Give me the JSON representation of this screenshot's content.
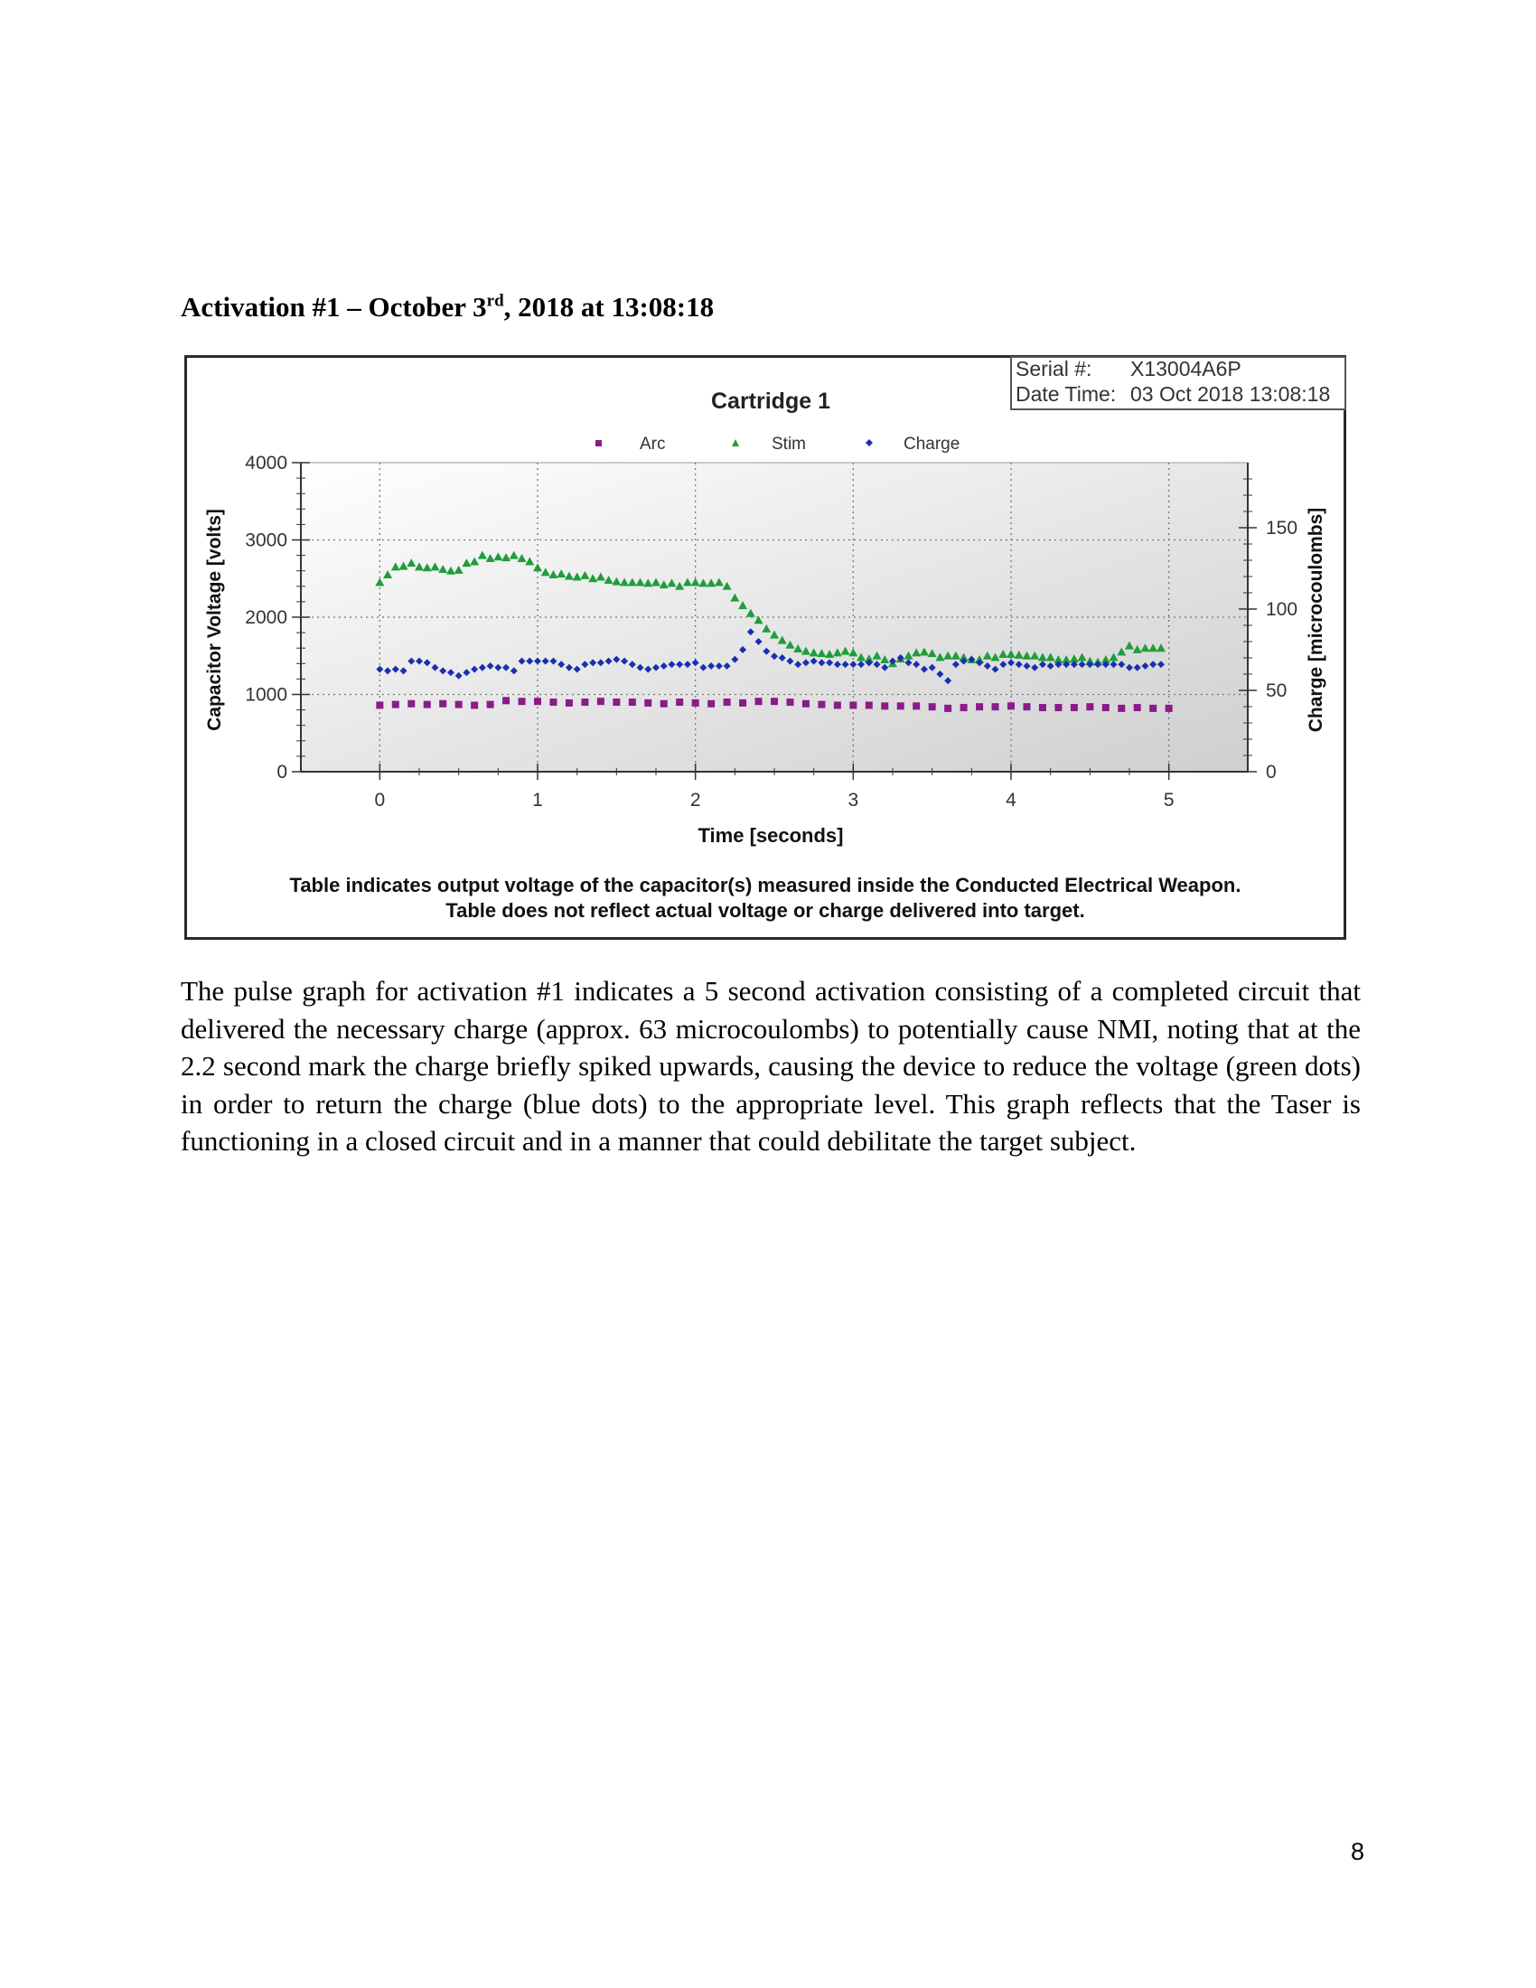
{
  "heading": {
    "prefix": "Activation #1 – October 3",
    "superscript": "rd",
    "suffix": ", 2018 at 13:08:18"
  },
  "figure": {
    "serial_label": "Serial #:",
    "serial_value": "X13004A6P",
    "datetime_label": "Date Time:",
    "datetime_value": "03 Oct 2018 13:08:18",
    "caption_line1": "Table indicates output voltage of the capacitor(s) measured inside the Conducted Electrical Weapon.",
    "caption_line2": "Table does not reflect actual voltage or charge delivered into target."
  },
  "chart_data": {
    "type": "scatter",
    "title": "Cartridge 1",
    "xlabel": "Time [seconds]",
    "ylabel": "Capacitor Voltage [volts]",
    "y2label": "Charge [microcoulombs]",
    "xlim": [
      -0.5,
      5.5
    ],
    "ylim": [
      0,
      4000
    ],
    "y2lim": [
      0,
      190
    ],
    "xticks": [
      0,
      1,
      2,
      3,
      4,
      5
    ],
    "yticks": [
      0,
      1000,
      2000,
      3000,
      4000
    ],
    "y2ticks": [
      0,
      50,
      100,
      150
    ],
    "grid": true,
    "legend_position": "top-center",
    "series": [
      {
        "name": "Arc",
        "marker": "square",
        "color": "#8b1a8b",
        "axis": "left",
        "x": [
          0,
          0.1,
          0.2,
          0.3,
          0.4,
          0.5,
          0.6,
          0.7,
          0.8,
          0.9,
          1.0,
          1.1,
          1.2,
          1.3,
          1.4,
          1.5,
          1.6,
          1.7,
          1.8,
          1.9,
          2.0,
          2.1,
          2.2,
          2.3,
          2.4,
          2.5,
          2.6,
          2.7,
          2.8,
          2.9,
          3.0,
          3.1,
          3.2,
          3.3,
          3.4,
          3.5,
          3.6,
          3.7,
          3.8,
          3.9,
          4.0,
          4.1,
          4.2,
          4.3,
          4.4,
          4.5,
          4.6,
          4.7,
          4.8,
          4.9,
          5.0
        ],
        "values": [
          860,
          870,
          880,
          870,
          880,
          870,
          860,
          870,
          920,
          910,
          910,
          900,
          890,
          900,
          910,
          900,
          900,
          890,
          880,
          900,
          890,
          880,
          900,
          890,
          910,
          910,
          900,
          880,
          870,
          860,
          860,
          860,
          850,
          850,
          850,
          840,
          820,
          830,
          840,
          840,
          850,
          840,
          830,
          830,
          830,
          840,
          830,
          820,
          830,
          820,
          820
        ]
      },
      {
        "name": "Stim",
        "marker": "triangle",
        "color": "#1e9e3a",
        "axis": "left",
        "x": [
          0,
          0.05,
          0.1,
          0.15,
          0.2,
          0.25,
          0.3,
          0.35,
          0.4,
          0.45,
          0.5,
          0.55,
          0.6,
          0.65,
          0.7,
          0.75,
          0.8,
          0.85,
          0.9,
          0.95,
          1.0,
          1.05,
          1.1,
          1.15,
          1.2,
          1.25,
          1.3,
          1.35,
          1.4,
          1.45,
          1.5,
          1.55,
          1.6,
          1.65,
          1.7,
          1.75,
          1.8,
          1.85,
          1.9,
          1.95,
          2.0,
          2.05,
          2.1,
          2.15,
          2.2,
          2.25,
          2.3,
          2.35,
          2.4,
          2.45,
          2.5,
          2.55,
          2.6,
          2.65,
          2.7,
          2.75,
          2.8,
          2.85,
          2.9,
          2.95,
          3.0,
          3.05,
          3.1,
          3.15,
          3.2,
          3.25,
          3.3,
          3.35,
          3.4,
          3.45,
          3.5,
          3.55,
          3.6,
          3.65,
          3.7,
          3.75,
          3.8,
          3.85,
          3.9,
          3.95,
          4.0,
          4.05,
          4.1,
          4.15,
          4.2,
          4.25,
          4.3,
          4.35,
          4.4,
          4.45,
          4.5,
          4.55,
          4.6,
          4.65,
          4.7,
          4.75,
          4.8,
          4.85,
          4.9,
          4.95
        ],
        "values": [
          2450,
          2550,
          2650,
          2660,
          2700,
          2650,
          2640,
          2650,
          2620,
          2600,
          2610,
          2700,
          2720,
          2800,
          2760,
          2780,
          2770,
          2800,
          2760,
          2720,
          2640,
          2580,
          2550,
          2560,
          2530,
          2520,
          2540,
          2500,
          2520,
          2480,
          2460,
          2450,
          2450,
          2450,
          2440,
          2450,
          2420,
          2440,
          2400,
          2450,
          2450,
          2440,
          2440,
          2450,
          2400,
          2250,
          2150,
          2050,
          1960,
          1850,
          1770,
          1700,
          1640,
          1590,
          1560,
          1540,
          1530,
          1520,
          1540,
          1560,
          1540,
          1480,
          1460,
          1500,
          1450,
          1400,
          1460,
          1500,
          1540,
          1550,
          1530,
          1480,
          1500,
          1500,
          1480,
          1450,
          1450,
          1500,
          1480,
          1520,
          1520,
          1510,
          1500,
          1500,
          1480,
          1480,
          1450,
          1450,
          1460,
          1480,
          1430,
          1420,
          1450,
          1480,
          1550,
          1630,
          1580,
          1600,
          1600,
          1600
        ]
      },
      {
        "name": "Charge",
        "marker": "diamond",
        "color": "#1a2fb0",
        "axis": "right",
        "x": [
          0,
          0.05,
          0.1,
          0.15,
          0.2,
          0.25,
          0.3,
          0.35,
          0.4,
          0.45,
          0.5,
          0.55,
          0.6,
          0.65,
          0.7,
          0.75,
          0.8,
          0.85,
          0.9,
          0.95,
          1.0,
          1.05,
          1.1,
          1.15,
          1.2,
          1.25,
          1.3,
          1.35,
          1.4,
          1.45,
          1.5,
          1.55,
          1.6,
          1.65,
          1.7,
          1.75,
          1.8,
          1.85,
          1.9,
          1.95,
          2.0,
          2.05,
          2.1,
          2.15,
          2.2,
          2.25,
          2.3,
          2.35,
          2.4,
          2.45,
          2.5,
          2.55,
          2.6,
          2.65,
          2.7,
          2.75,
          2.8,
          2.85,
          2.9,
          2.95,
          3.0,
          3.05,
          3.1,
          3.15,
          3.2,
          3.25,
          3.3,
          3.35,
          3.4,
          3.45,
          3.5,
          3.55,
          3.6,
          3.65,
          3.7,
          3.75,
          3.8,
          3.85,
          3.9,
          3.95,
          4.0,
          4.05,
          4.1,
          4.15,
          4.2,
          4.25,
          4.3,
          4.35,
          4.4,
          4.45,
          4.5,
          4.55,
          4.6,
          4.65,
          4.7,
          4.75,
          4.8,
          4.85,
          4.9,
          4.95
        ],
        "values": [
          63,
          62,
          63,
          62,
          68,
          68,
          67,
          64,
          62,
          61,
          59,
          61,
          63,
          64,
          65,
          64,
          64,
          62,
          68,
          68,
          68,
          68,
          68,
          66,
          64,
          63,
          66,
          67,
          67,
          68,
          69,
          68,
          66,
          64,
          63,
          64,
          65,
          66,
          66,
          66,
          67,
          64,
          65,
          65,
          65,
          69,
          75,
          86,
          80,
          74,
          71,
          70,
          68,
          66,
          67,
          68,
          67,
          67,
          66,
          66,
          66,
          66,
          67,
          66,
          64,
          68,
          70,
          67,
          66,
          63,
          64,
          60,
          56,
          66,
          68,
          69,
          67,
          65,
          63,
          66,
          67,
          66,
          65,
          64,
          66,
          65,
          66,
          66,
          66,
          66,
          66,
          66,
          66,
          66,
          66,
          64,
          64,
          65,
          66,
          66
        ]
      }
    ]
  },
  "paragraph": "The pulse graph for activation #1 indicates a 5 second activation consisting of a completed circuit that delivered the necessary charge (approx. 63 microcoulombs) to potentially cause NMI, noting that at the 2.2 second mark the charge briefly spiked upwards, causing the device to reduce the voltage (green dots) in order to return the charge (blue dots) to the appropriate level. This graph reflects that the Taser is functioning in a closed circuit and in a manner that could debilitate the target subject.",
  "page_number": "8"
}
